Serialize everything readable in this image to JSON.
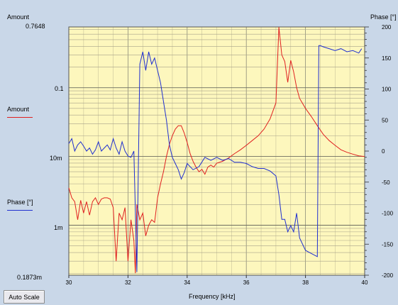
{
  "chart_data": {
    "type": "line",
    "xlabel": "Frequency [kHz]",
    "ylabel_left": "Amount",
    "ylabel_right": "Phase [°]",
    "x_ticks": [
      30,
      32,
      34,
      36,
      38,
      40
    ],
    "xlim": [
      30,
      40
    ],
    "left_scale": "log",
    "left_ylim": [
      0.0001873,
      0.7648
    ],
    "left_tick_labels": [
      "0.7648",
      "0.1",
      "10m",
      "1m",
      "0.1873m"
    ],
    "right_ylim": [
      -200,
      200
    ],
    "right_ticks": [
      200,
      150,
      100,
      50,
      0,
      -50,
      -100,
      -150,
      -200
    ],
    "grid": true,
    "legend": [
      {
        "name": "Amount",
        "color": "#e02020"
      },
      {
        "name": "Phase [°]",
        "color": "#2030d0"
      }
    ],
    "series": [
      {
        "name": "Amount",
        "axis": "left",
        "color": "#e02020",
        "x": [
          30.0,
          30.1,
          30.2,
          30.3,
          30.4,
          30.5,
          30.6,
          30.7,
          30.8,
          30.9,
          31.0,
          31.1,
          31.2,
          31.3,
          31.4,
          31.5,
          31.6,
          31.7,
          31.8,
          31.9,
          32.0,
          32.1,
          32.2,
          32.25,
          32.3,
          32.4,
          32.5,
          32.6,
          32.7,
          32.8,
          32.9,
          33.0,
          33.1,
          33.2,
          33.3,
          33.4,
          33.5,
          33.6,
          33.7,
          33.8,
          33.9,
          34.0,
          34.1,
          34.2,
          34.3,
          34.4,
          34.5,
          34.6,
          34.7,
          34.8,
          34.9,
          35.0,
          35.2,
          35.4,
          35.6,
          35.8,
          36.0,
          36.2,
          36.4,
          36.6,
          36.8,
          37.0,
          37.1,
          37.2,
          37.3,
          37.4,
          37.5,
          37.6,
          37.7,
          37.8,
          38.0,
          38.2,
          38.4,
          38.6,
          38.8,
          39.0,
          39.2,
          39.4,
          39.6,
          39.8,
          40.0
        ],
        "y": [
          0.0035,
          0.0025,
          0.0022,
          0.0012,
          0.0023,
          0.0015,
          0.0022,
          0.0014,
          0.0022,
          0.0025,
          0.002,
          0.0024,
          0.0025,
          0.0025,
          0.0024,
          0.0018,
          0.0003,
          0.0015,
          0.0012,
          0.0018,
          0.0003,
          0.0012,
          0.0006,
          0.0002,
          0.002,
          0.0012,
          0.0015,
          0.0007,
          0.001,
          0.0012,
          0.0011,
          0.0025,
          0.004,
          0.006,
          0.01,
          0.015,
          0.02,
          0.025,
          0.028,
          0.028,
          0.022,
          0.016,
          0.011,
          0.0085,
          0.007,
          0.006,
          0.0065,
          0.0055,
          0.007,
          0.0075,
          0.007,
          0.008,
          0.0085,
          0.0095,
          0.011,
          0.0125,
          0.0145,
          0.017,
          0.02,
          0.025,
          0.035,
          0.06,
          0.76,
          0.3,
          0.24,
          0.12,
          0.25,
          0.17,
          0.1,
          0.07,
          0.05,
          0.038,
          0.028,
          0.021,
          0.017,
          0.0145,
          0.0125,
          0.0115,
          0.0108,
          0.0102,
          0.01
        ]
      },
      {
        "name": "Phase [°]",
        "axis": "right",
        "color": "#2030d0",
        "x": [
          30.0,
          30.1,
          30.2,
          30.3,
          30.4,
          30.5,
          30.6,
          30.7,
          30.8,
          30.9,
          31.0,
          31.1,
          31.2,
          31.3,
          31.4,
          31.5,
          31.6,
          31.7,
          31.8,
          31.9,
          32.0,
          32.1,
          32.2,
          32.3,
          32.4,
          32.5,
          32.6,
          32.7,
          32.8,
          32.9,
          33.0,
          33.1,
          33.2,
          33.3,
          33.4,
          33.5,
          33.6,
          33.7,
          33.8,
          33.9,
          34.0,
          34.2,
          34.4,
          34.6,
          34.8,
          35.0,
          35.2,
          35.4,
          35.6,
          35.8,
          36.0,
          36.2,
          36.4,
          36.6,
          36.8,
          37.0,
          37.1,
          37.2,
          37.3,
          37.4,
          37.5,
          37.6,
          37.7,
          37.8,
          38.0,
          38.2,
          38.4,
          38.45,
          38.5,
          38.6,
          38.8,
          39.0,
          39.2,
          39.4,
          39.6,
          39.8,
          39.9
        ],
        "y": [
          12,
          20,
          0,
          10,
          15,
          8,
          0,
          5,
          -5,
          2,
          15,
          0,
          5,
          10,
          2,
          20,
          5,
          -5,
          15,
          0,
          -8,
          -10,
          0,
          -195,
          140,
          160,
          130,
          160,
          140,
          150,
          130,
          110,
          80,
          50,
          10,
          -10,
          -20,
          -30,
          -45,
          -35,
          -20,
          -30,
          -25,
          -10,
          -15,
          -10,
          -15,
          -12,
          -18,
          -18,
          -20,
          -25,
          -28,
          -28,
          -32,
          -40,
          -70,
          -110,
          -110,
          -130,
          -120,
          -130,
          -100,
          -140,
          -160,
          -165,
          -170,
          170,
          170,
          168,
          165,
          162,
          165,
          160,
          162,
          158,
          165
        ]
      }
    ]
  },
  "ui": {
    "auto_scale_label": "Auto Scale"
  }
}
